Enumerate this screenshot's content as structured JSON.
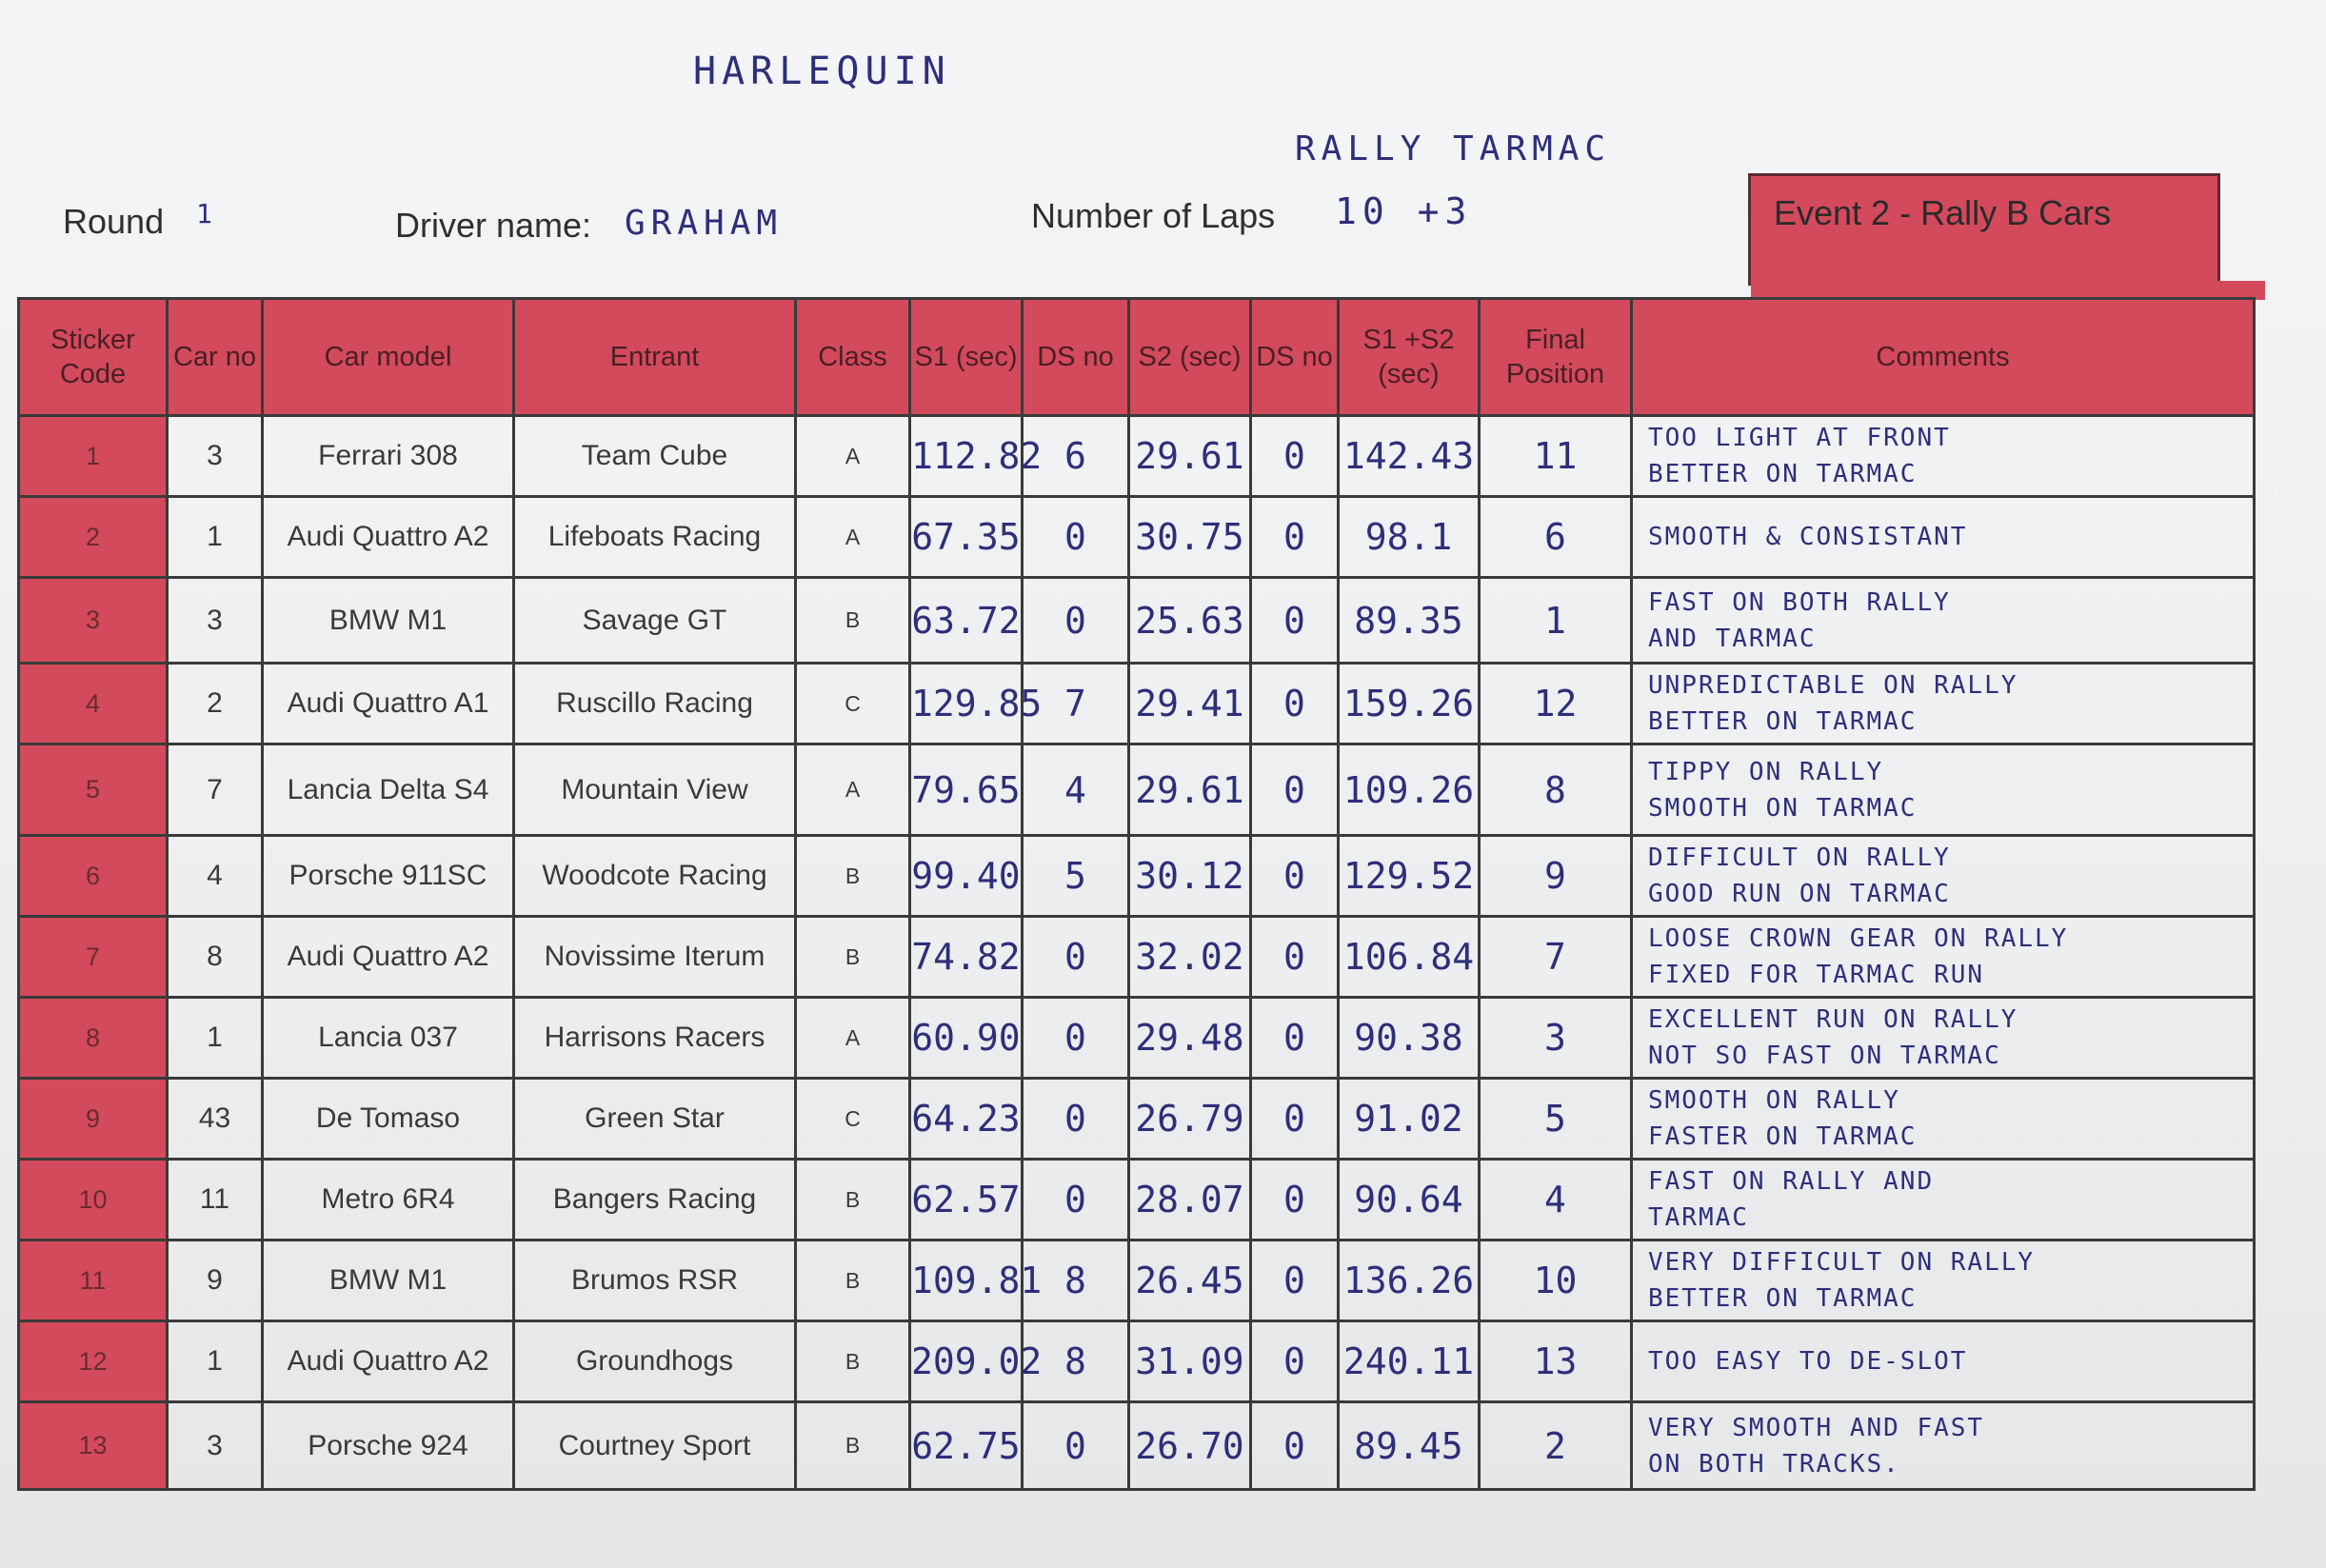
{
  "header": {
    "team_handwritten": "HARLEQUIN",
    "surface_handwritten": "RALLY   TARMAC",
    "round_label": "Round",
    "round_value": "1",
    "driver_label": "Driver name:",
    "driver_value": "GRAHAM",
    "laps_label": "Number of Laps",
    "laps_value": "10   +3",
    "event_label": "Event 2   - Rally B Cars"
  },
  "table": {
    "columns": [
      "Sticker Code",
      "Car no",
      "Car model",
      "Entrant",
      "Class",
      "S1 (sec)",
      "DS no",
      "S2 (sec)",
      "DS no",
      "S1 +S2 (sec)",
      "Final Position",
      "Comments"
    ],
    "rows": [
      {
        "code": "1",
        "car_no": "3",
        "model": "Ferrari 308",
        "entrant": "Team Cube",
        "class": "A",
        "s1": "112.82",
        "ds1": "6",
        "s2": "29.61",
        "ds2": "0",
        "total": "142.43",
        "position": "11",
        "comment_1": "TOO LIGHT AT FRONT",
        "comment_2": "BETTER ON TARMAC"
      },
      {
        "code": "2",
        "car_no": "1",
        "model": "Audi Quattro A2",
        "entrant": "Lifeboats Racing",
        "class": "A",
        "s1": "67.35",
        "ds1": "0",
        "s2": "30.75",
        "ds2": "0",
        "total": "98.1",
        "position": "6",
        "comment_1": "SMOOTH & CONSISTANT",
        "comment_2": ""
      },
      {
        "code": "3",
        "car_no": "3",
        "model": "BMW M1",
        "entrant": "Savage GT",
        "class": "B",
        "s1": "63.72",
        "ds1": "0",
        "s2": "25.63",
        "ds2": "0",
        "total": "89.35",
        "position": "1",
        "comment_1": "FAST ON BOTH RALLY",
        "comment_2": "AND TARMAC"
      },
      {
        "code": "4",
        "car_no": "2",
        "model": "Audi Quattro A1",
        "entrant": "Ruscillo Racing",
        "class": "C",
        "s1": "129.85",
        "ds1": "7",
        "s2": "29.41",
        "ds2": "0",
        "total": "159.26",
        "position": "12",
        "comment_1": "UNPREDICTABLE ON RALLY",
        "comment_2": "BETTER ON TARMAC"
      },
      {
        "code": "5",
        "car_no": "7",
        "model": "Lancia Delta S4",
        "entrant": "Mountain View",
        "class": "A",
        "s1": "79.65",
        "ds1": "4",
        "s2": "29.61",
        "ds2": "0",
        "total": "109.26",
        "position": "8",
        "comment_1": "TIPPY ON RALLY",
        "comment_2": "SMOOTH ON TARMAC"
      },
      {
        "code": "6",
        "car_no": "4",
        "model": "Porsche 911SC",
        "entrant": "Woodcote Racing",
        "class": "B",
        "s1": "99.40",
        "ds1": "5",
        "s2": "30.12",
        "ds2": "0",
        "total": "129.52",
        "position": "9",
        "comment_1": "DIFFICULT ON RALLY",
        "comment_2": "GOOD RUN ON TARMAC"
      },
      {
        "code": "7",
        "car_no": "8",
        "model": "Audi Quattro A2",
        "entrant": "Novissime Iterum",
        "class": "B",
        "s1": "74.82",
        "ds1": "0",
        "s2": "32.02",
        "ds2": "0",
        "total": "106.84",
        "position": "7",
        "comment_1": "LOOSE CROWN GEAR ON RALLY",
        "comment_2": "FIXED FOR TARMAC RUN"
      },
      {
        "code": "8",
        "car_no": "1",
        "model": "Lancia 037",
        "entrant": "Harrisons Racers",
        "class": "A",
        "s1": "60.90",
        "ds1": "0",
        "s2": "29.48",
        "ds2": "0",
        "total": "90.38",
        "position": "3",
        "comment_1": "EXCELLENT RUN ON RALLY",
        "comment_2": "NOT SO FAST ON TARMAC"
      },
      {
        "code": "9",
        "car_no": "43",
        "model": "De Tomaso",
        "entrant": "Green Star",
        "class": "C",
        "s1": "64.23",
        "ds1": "0",
        "s2": "26.79",
        "ds2": "0",
        "total": "91.02",
        "position": "5",
        "comment_1": "SMOOTH ON RALLY",
        "comment_2": "FASTER ON TARMAC"
      },
      {
        "code": "10",
        "car_no": "11",
        "model": "Metro 6R4",
        "entrant": "Bangers Racing",
        "class": "B",
        "s1": "62.57",
        "ds1": "0",
        "s2": "28.07",
        "ds2": "0",
        "total": "90.64",
        "position": "4",
        "comment_1": "FAST ON RALLY AND",
        "comment_2": "TARMAC"
      },
      {
        "code": "11",
        "car_no": "9",
        "model": "BMW M1",
        "entrant": "Brumos RSR",
        "class": "B",
        "s1": "109.81",
        "ds1": "8",
        "s2": "26.45",
        "ds2": "0",
        "total": "136.26",
        "position": "10",
        "comment_1": "VERY DIFFICULT ON RALLY",
        "comment_2": "BETTER ON TARMAC"
      },
      {
        "code": "12",
        "car_no": "1",
        "model": "Audi Quattro A2",
        "entrant": "Groundhogs",
        "class": "B",
        "s1": "209.02",
        "ds1": "8",
        "s2": "31.09",
        "ds2": "0",
        "total": "240.11",
        "position": "13",
        "comment_1": "TOO EASY TO DE-SLOT",
        "comment_2": ""
      },
      {
        "code": "13",
        "car_no": "3",
        "model": "Porsche 924",
        "entrant": "Courtney Sport",
        "class": "B",
        "s1": "62.75",
        "ds1": "0",
        "s2": "26.70",
        "ds2": "0",
        "total": "89.45",
        "position": "2",
        "comment_1": "VERY SMOOTH AND FAST",
        "comment_2": "ON BOTH TRACKS."
      }
    ]
  }
}
